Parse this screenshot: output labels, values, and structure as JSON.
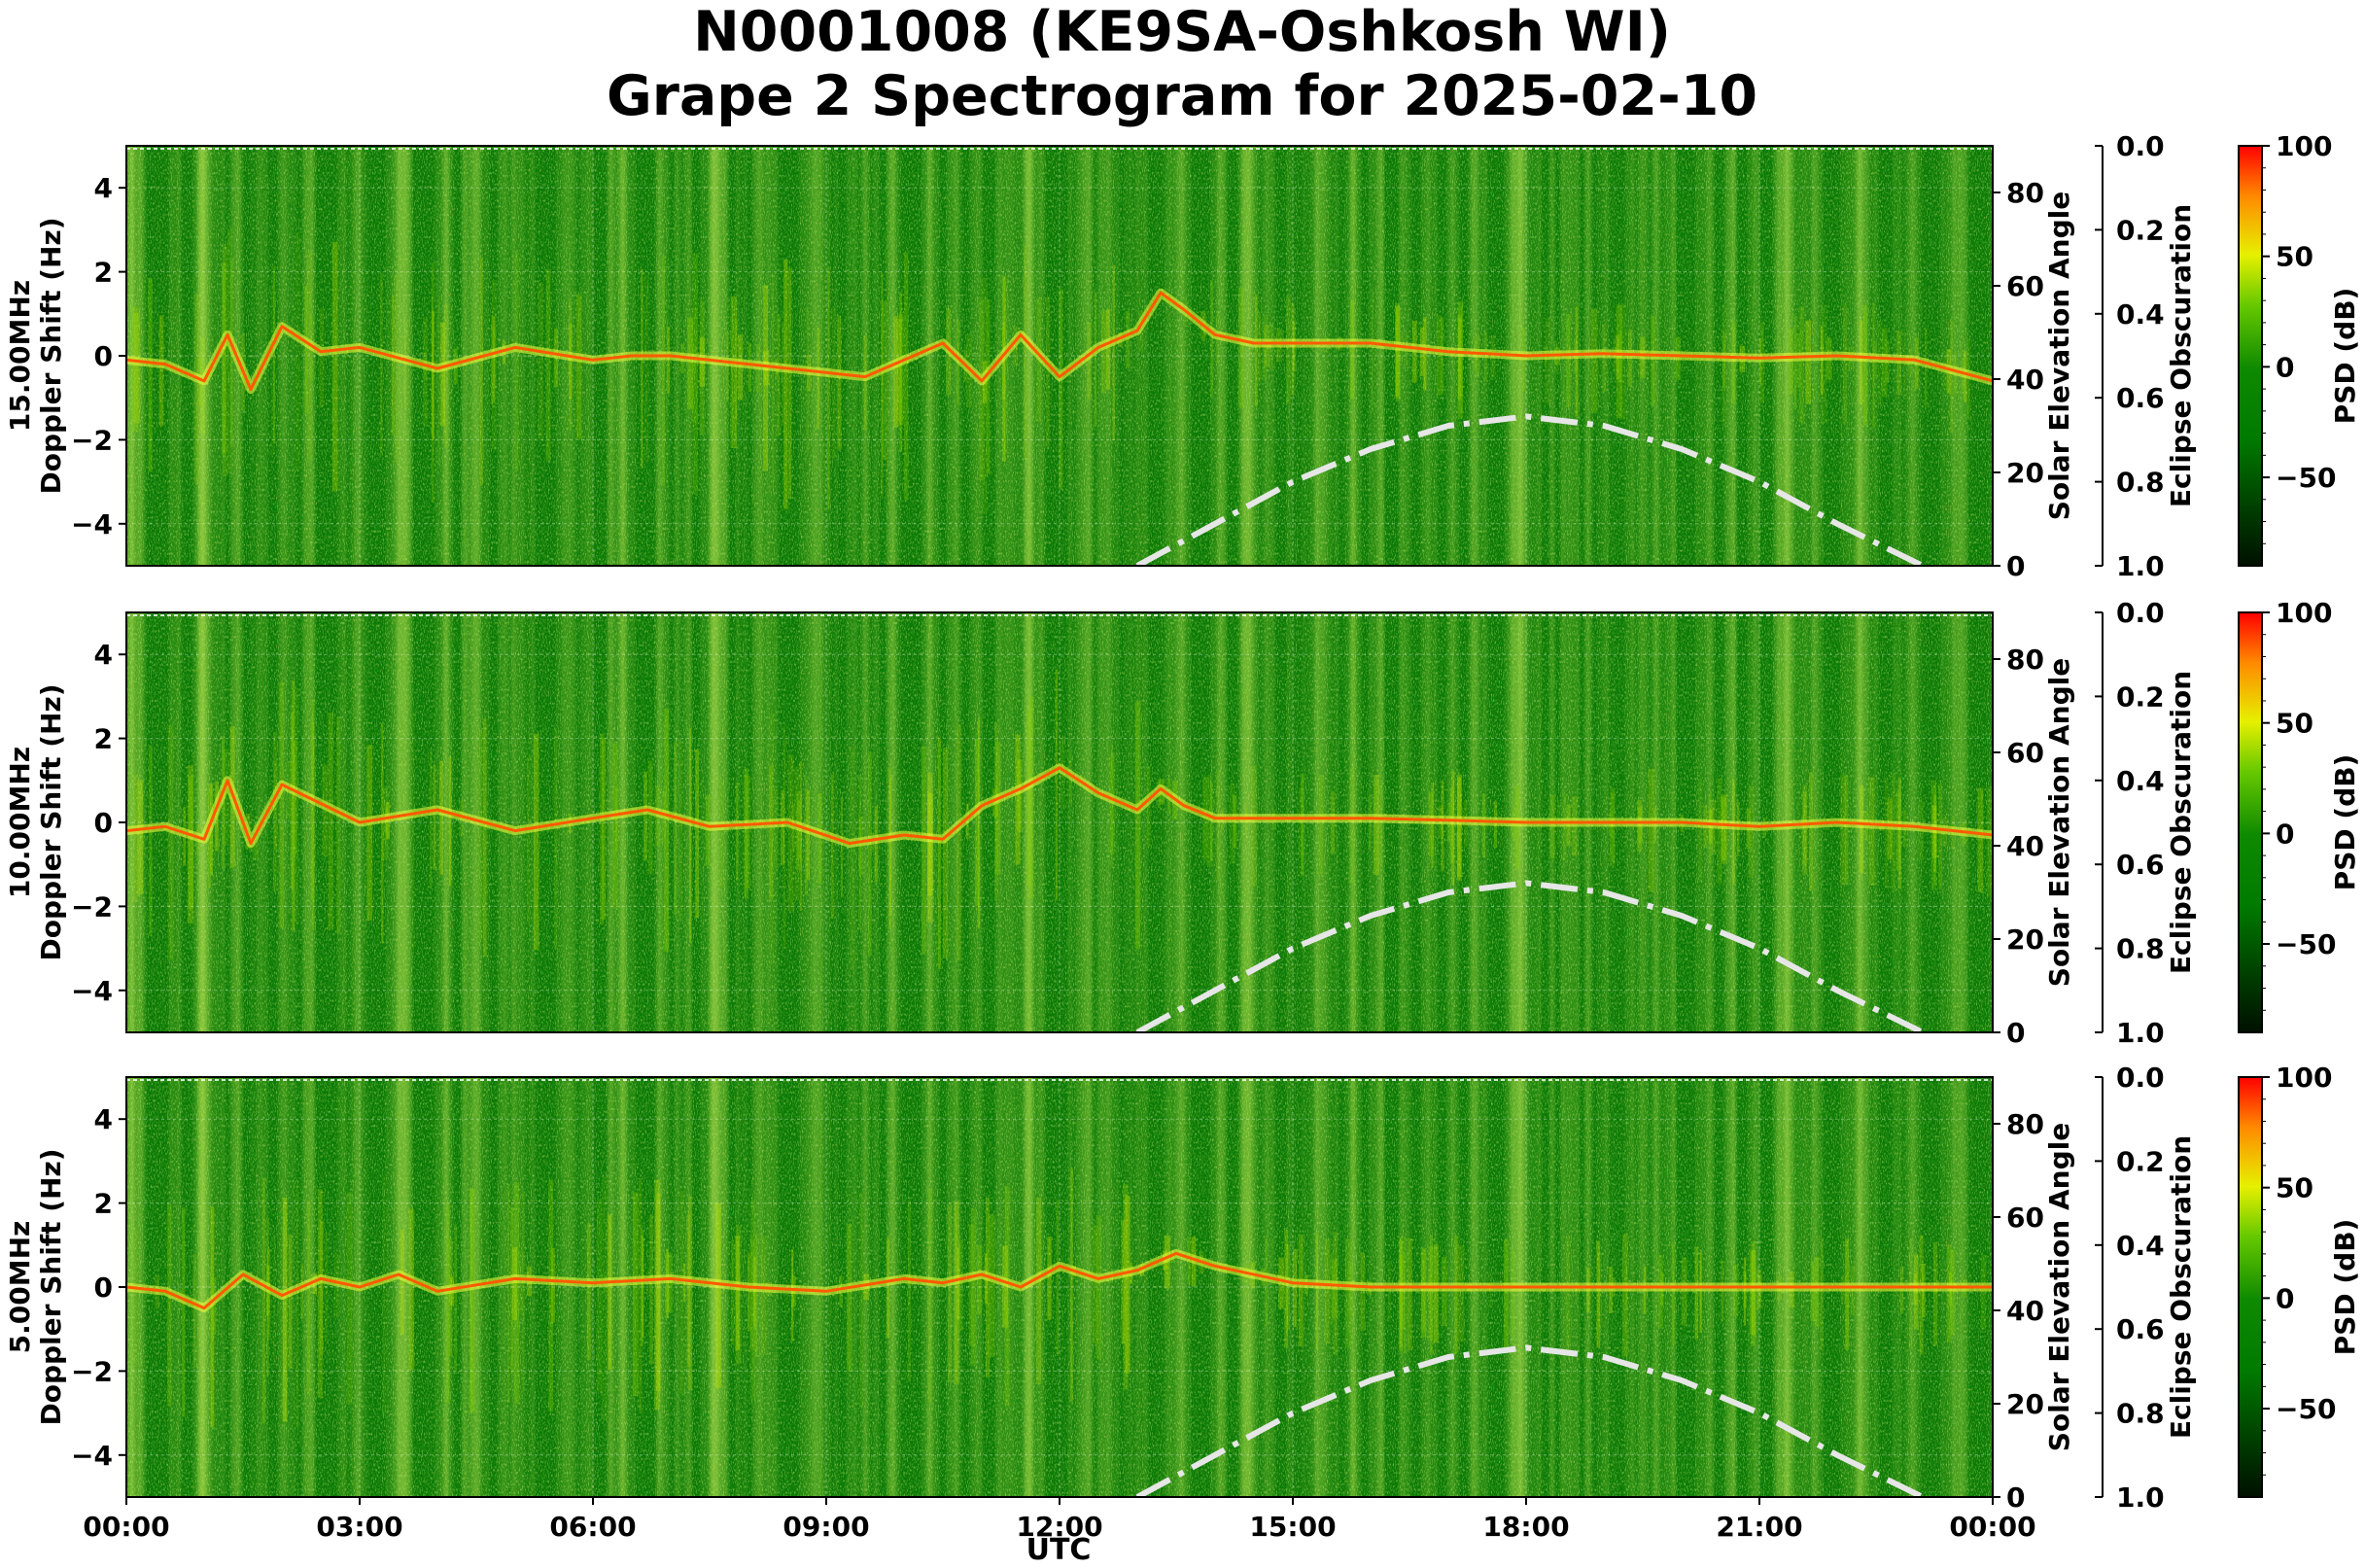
{
  "chart_data": {
    "type": "heatmap",
    "title": "N0001008 (KE9SA-Oshkosh WI)",
    "subtitle": "Grape 2 Spectrogram for 2025-02-10",
    "xlabel": "UTC",
    "x_ticks": [
      "00:00",
      "03:00",
      "06:00",
      "09:00",
      "12:00",
      "15:00",
      "18:00",
      "21:00",
      "00:00"
    ],
    "xlim_hours": [
      0,
      24
    ],
    "doppler_ticks": [
      4,
      2,
      0,
      -2,
      -4
    ],
    "doppler_tick_labels": [
      "4",
      "2",
      "0",
      "−2",
      "−4"
    ],
    "ylim_doppler": [
      -5,
      5
    ],
    "elev_axis_label": "Solar Elevation Angle",
    "elev_ticks": [
      "0",
      "20",
      "40",
      "60",
      "80"
    ],
    "ylim_elevation": [
      0,
      90
    ],
    "eclipse_axis_label": "Eclipse Obscuration",
    "eclipse_ticks": [
      "0.0",
      "0.2",
      "0.4",
      "0.6",
      "0.8",
      "1.0"
    ],
    "colorbar_label": "PSD (dB)",
    "colorbar_ticks": [
      "100",
      "50",
      "0",
      "−50"
    ],
    "colorbar_range": [
      -90,
      100
    ],
    "grid": true,
    "panels": [
      {
        "label_line1": "15.00MHz",
        "label_line2": "Doppler Shift (Hz)",
        "solar_elevation": {
          "x": [
            13,
            14,
            15,
            16,
            17,
            18,
            19,
            20,
            21,
            22,
            23.1
          ],
          "y": [
            0,
            9,
            18,
            25,
            30,
            32,
            30,
            25,
            18,
            9,
            0
          ]
        },
        "signal_trace": {
          "x": [
            0,
            0.5,
            1,
            1.3,
            1.6,
            2,
            2.5,
            3,
            4,
            5,
            6,
            6.5,
            7,
            9.5,
            10.5,
            11,
            11.5,
            12,
            12.5,
            13,
            13.3,
            13.6,
            14,
            14.5,
            15,
            16,
            17,
            18,
            19,
            20,
            21,
            22,
            23,
            24
          ],
          "y": [
            -0.1,
            -0.2,
            -0.6,
            0.5,
            -0.8,
            0.7,
            0.1,
            0.2,
            -0.3,
            0.2,
            -0.1,
            0.0,
            0.0,
            -0.5,
            0.3,
            -0.6,
            0.5,
            -0.5,
            0.2,
            0.6,
            1.5,
            1.1,
            0.5,
            0.3,
            0.3,
            0.3,
            0.1,
            0.0,
            0.05,
            0.0,
            -0.05,
            0.0,
            -0.1,
            -0.6
          ]
        }
      },
      {
        "label_line1": "10.00MHz",
        "label_line2": "Doppler Shift (Hz)",
        "solar_elevation": {
          "x": [
            13,
            14,
            15,
            16,
            17,
            18,
            19,
            20,
            21,
            22,
            23.1
          ],
          "y": [
            0,
            9,
            18,
            25,
            30,
            32,
            30,
            25,
            18,
            9,
            0
          ]
        },
        "signal_trace": {
          "x": [
            0,
            0.5,
            1,
            1.3,
            1.6,
            2,
            3,
            4,
            5,
            6,
            6.7,
            7.5,
            8.5,
            9.3,
            10,
            10.5,
            11,
            11.5,
            12,
            12.5,
            13,
            13.3,
            13.6,
            14,
            15,
            16,
            17,
            18,
            19,
            20,
            21,
            22,
            23,
            24
          ],
          "y": [
            -0.2,
            -0.1,
            -0.4,
            1.0,
            -0.5,
            0.9,
            0.0,
            0.3,
            -0.2,
            0.1,
            0.3,
            -0.1,
            0.0,
            -0.5,
            -0.3,
            -0.4,
            0.4,
            0.8,
            1.3,
            0.7,
            0.3,
            0.8,
            0.4,
            0.1,
            0.1,
            0.1,
            0.05,
            0.0,
            0.0,
            0.0,
            -0.1,
            0.0,
            -0.1,
            -0.3
          ]
        }
      },
      {
        "label_line1": "5.00MHz",
        "label_line2": "Doppler Shift (Hz)",
        "solar_elevation": {
          "x": [
            13,
            14,
            15,
            16,
            17,
            18,
            19,
            20,
            21,
            22,
            23.1
          ],
          "y": [
            0,
            9,
            18,
            25,
            30,
            32,
            30,
            25,
            18,
            9,
            0
          ]
        },
        "signal_trace": {
          "x": [
            0,
            0.5,
            1,
            1.5,
            2,
            2.5,
            3,
            3.5,
            4,
            5,
            6,
            7,
            8,
            9,
            10,
            10.5,
            11,
            11.5,
            12,
            12.5,
            13,
            13.5,
            14,
            15,
            16,
            18,
            20,
            22,
            23,
            24
          ],
          "y": [
            0.0,
            -0.1,
            -0.5,
            0.3,
            -0.2,
            0.2,
            0.0,
            0.3,
            -0.1,
            0.2,
            0.1,
            0.2,
            0.0,
            -0.1,
            0.2,
            0.1,
            0.3,
            0.0,
            0.5,
            0.2,
            0.4,
            0.8,
            0.5,
            0.1,
            0.0,
            0.0,
            0.0,
            0.0,
            0.0,
            0.0
          ]
        }
      }
    ]
  }
}
